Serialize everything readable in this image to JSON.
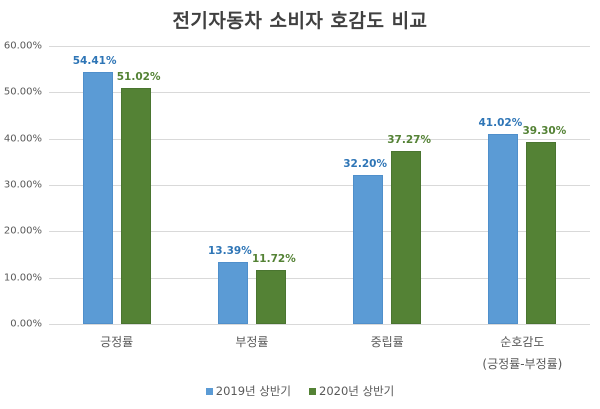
{
  "chart_data": {
    "type": "bar",
    "title": "전기자동차 소비자 호감도 비교",
    "xlabel": "",
    "ylabel": "",
    "ylim": [
      0,
      60
    ],
    "yticks": [
      "0.00%",
      "10.00%",
      "20.00%",
      "30.00%",
      "40.00%",
      "50.00%",
      "60.00%"
    ],
    "grid": true,
    "legend_position": "bottom",
    "categories": [
      "긍정률",
      "부정률",
      "중립률",
      "순호감도\n(긍정률-부정률)"
    ],
    "category_lines": [
      [
        "긍정률"
      ],
      [
        "부정률"
      ],
      [
        "중립률"
      ],
      [
        "순호감도",
        "(긍정률-부정률)"
      ]
    ],
    "series": [
      {
        "name": "2019년 상반기",
        "color": "#5b9bd5",
        "label_color": "#2e75b6",
        "values": [
          54.41,
          13.39,
          32.2,
          41.02
        ],
        "labels": [
          "54.41%",
          "13.39%",
          "32.20%",
          "41.02%"
        ]
      },
      {
        "name": "2020년 상반기",
        "color": "#548235",
        "label_color": "#548235",
        "values": [
          51.02,
          11.72,
          37.27,
          39.3
        ],
        "labels": [
          "51.02%",
          "11.72%",
          "37.27%",
          "39.30%"
        ]
      }
    ]
  }
}
